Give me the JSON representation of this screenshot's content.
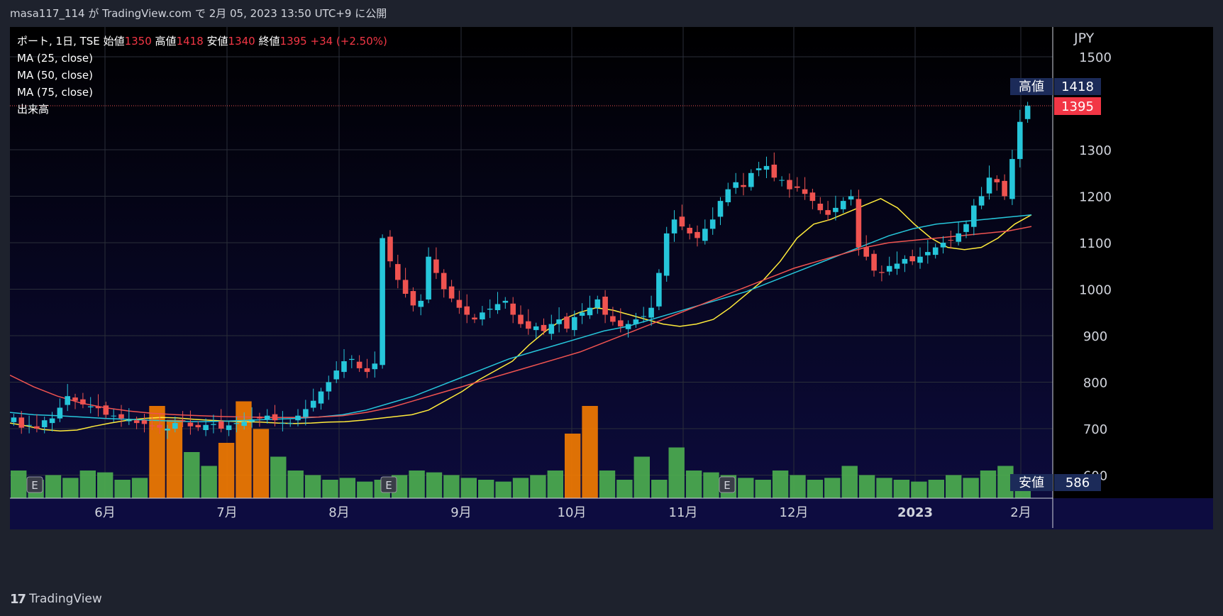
{
  "header": {
    "text": "masa117_114 が TradingView.com で 2月 05, 2023 13:50 UTC+9 に公開"
  },
  "legend": {
    "symbol": "ポート, 1日, TSE",
    "open_label": "始値",
    "open": "1350",
    "high_label": "高値",
    "high": "1418",
    "low_label": "安値",
    "low": "1340",
    "close_label": "終値",
    "close": "1395",
    "change": "+34 (+2.50%)",
    "ma25": "MA (25, close)",
    "ma50": "MA (50, close)",
    "ma75": "MA (75, close)",
    "volume": "出来高"
  },
  "axis": {
    "currency": "JPY",
    "y_ticks": [
      "1500",
      "1300",
      "1200",
      "1100",
      "1000",
      "900",
      "800",
      "700",
      "600"
    ],
    "x_ticks": [
      "6月",
      "7月",
      "8月",
      "9月",
      "10月",
      "11月",
      "12月",
      "2023",
      "2月"
    ]
  },
  "price_tags": {
    "high_label": "高値",
    "high_value": "1418",
    "last_value": "1395",
    "low_label": "安値",
    "low_value": "586"
  },
  "earnings_marker": "E",
  "footer": {
    "brand": "TradingView"
  },
  "colors": {
    "background": "#0d0c2e",
    "up": "#26c6da",
    "down": "#ef5350",
    "ma25": "#ffeb3b",
    "ma50": "#26c6da",
    "ma75": "#ef5350",
    "vol_normal": "#4caf50",
    "vol_high": "#f57c00"
  },
  "chart_data": {
    "type": "candlestick",
    "ylim": [
      586,
      1520
    ],
    "candles_close": [
      724,
      702,
      708,
      700,
      718,
      722,
      745,
      770,
      760,
      752,
      748,
      744,
      730,
      728,
      722,
      718,
      712,
      710,
      705,
      702,
      700,
      712,
      716,
      705,
      703,
      708,
      710,
      700,
      707,
      712,
      715,
      720,
      722,
      728,
      718,
      712,
      712,
      728,
      742,
      760,
      780,
      800,
      825,
      845,
      850,
      830,
      822,
      840,
      1110,
      1060,
      1020,
      990,
      965,
      975,
      1070,
      1035,
      1000,
      980,
      960,
      945,
      935,
      950,
      958,
      968,
      975,
      945,
      925,
      915,
      920,
      910,
      925,
      935,
      915,
      940,
      950,
      960,
      978,
      945,
      930,
      920,
      925,
      935,
      942,
      960,
      1035,
      1120,
      1150,
      1135,
      1120,
      1110,
      1130,
      1150,
      1190,
      1215,
      1230,
      1220,
      1250,
      1260,
      1265,
      1240,
      1235,
      1215,
      1218,
      1205,
      1190,
      1170,
      1160,
      1175,
      1190,
      1200,
      1090,
      1070,
      1040,
      1035,
      1050,
      1055,
      1065,
      1060,
      1070,
      1080,
      1090,
      1100,
      1105,
      1120,
      1140,
      1180,
      1200,
      1240,
      1230,
      1200,
      1280,
      1360,
      1395
    ],
    "ma25": [
      712,
      706,
      698,
      695,
      697,
      705,
      712,
      718,
      722,
      724,
      723,
      720,
      718,
      716,
      715,
      714,
      712,
      711,
      712,
      714,
      715,
      718,
      722,
      726,
      730,
      740,
      760,
      780,
      805,
      825,
      845,
      880,
      910,
      935,
      950,
      960,
      955,
      945,
      935,
      925,
      920,
      925,
      935,
      960,
      990,
      1020,
      1060,
      1110,
      1140,
      1150,
      1165,
      1180,
      1195,
      1175,
      1140,
      1110,
      1090,
      1085,
      1090,
      1110,
      1140,
      1160
    ],
    "ma50": [
      735,
      730,
      728,
      725,
      722,
      720,
      718,
      716,
      715,
      716,
      718,
      720,
      722,
      725,
      730,
      740,
      755,
      770,
      790,
      810,
      830,
      850,
      865,
      880,
      895,
      910,
      920,
      935,
      950,
      965,
      980,
      995,
      1015,
      1035,
      1055,
      1075,
      1095,
      1115,
      1130,
      1140,
      1145,
      1150,
      1155,
      1160
    ],
    "ma75": [
      815,
      790,
      770,
      755,
      745,
      738,
      733,
      730,
      728,
      726,
      725,
      724,
      724,
      725,
      728,
      735,
      745,
      760,
      775,
      790,
      805,
      820,
      835,
      850,
      865,
      885,
      905,
      925,
      945,
      965,
      985,
      1005,
      1025,
      1045,
      1060,
      1075,
      1090,
      1100,
      1105,
      1110,
      1115,
      1120,
      1125,
      1135
    ],
    "volume_relative": [
      0.3,
      0.2,
      0.25,
      0.22,
      0.3,
      0.28,
      0.2,
      0.22,
      1.0,
      0.85,
      0.5,
      0.35,
      0.6,
      1.05,
      0.75,
      0.45,
      0.3,
      0.25,
      0.2,
      0.22,
      0.18,
      0.2,
      0.25,
      0.3,
      0.28,
      0.25,
      0.22,
      0.2,
      0.18,
      0.22,
      0.25,
      0.3,
      0.7,
      1.0,
      0.3,
      0.2,
      0.45,
      0.2,
      0.55,
      0.3,
      0.28,
      0.25,
      0.22,
      0.2,
      0.3,
      0.25,
      0.2,
      0.22,
      0.35,
      0.25,
      0.22,
      0.2,
      0.18,
      0.2,
      0.25,
      0.22,
      0.3,
      0.35,
      0.2
    ]
  }
}
